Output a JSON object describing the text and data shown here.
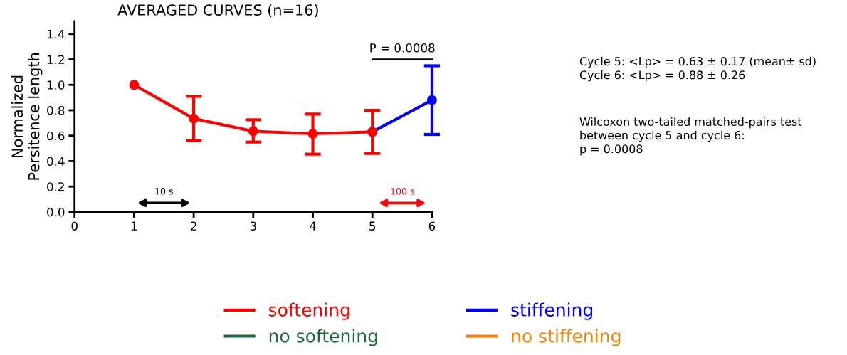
{
  "chart_data": {
    "type": "line",
    "title": "AVERAGED CURVES (n=16)",
    "ylabel": "Normalized\nPersitence length",
    "xlim": [
      0,
      6
    ],
    "xticks": [
      0,
      1,
      2,
      3,
      4,
      5,
      6
    ],
    "ylim": [
      0,
      1.5
    ],
    "yticks": [
      {
        "value": 0,
        "label": "0.0"
      },
      {
        "value": 0.2,
        "label": "0.2"
      },
      {
        "value": 0.4,
        "label": "0.4"
      },
      {
        "value": 0.6,
        "label": "0.6"
      },
      {
        "value": 0.8,
        "label": "0.8"
      },
      {
        "value": 1.0,
        "label": "1.0"
      },
      {
        "value": 1.2,
        "label": "1.2"
      },
      {
        "value": 1.4,
        "label": "1.4"
      }
    ],
    "series": [
      {
        "name": "softening",
        "color": "#ff0000",
        "x": [
          1,
          2,
          3,
          4,
          5
        ],
        "values": [
          1.0,
          0.735,
          0.635,
          0.615,
          0.63
        ],
        "errors": [
          null,
          [
            0.56,
            0.91
          ],
          [
            0.55,
            0.725
          ],
          [
            0.455,
            0.77
          ],
          [
            0.46,
            0.8
          ]
        ]
      },
      {
        "name": "stiffening",
        "color": "#0000ff",
        "x": [
          5,
          6
        ],
        "values": [
          0.63,
          0.88
        ],
        "errors": [
          null,
          [
            0.61,
            1.15
          ]
        ]
      },
      {
        "name": "no softening",
        "color": "#1a6b35"
      },
      {
        "name": "no stiffening",
        "color": "#ff8000"
      }
    ],
    "marker": "circle",
    "legend": "bottom",
    "grid": false,
    "annotations": [
      "P = 0.0008",
      "10 s",
      "100 s",
      "Cycle 5: <Lp> = 0.63 ± 0.17 (mean± sd)\nCycle 6: <Lp> = 0.88 ± 0.26",
      "Wilcoxon two-tailed matched-pairs test\nbetween cycle 5 and cycle 6:\np = 0.0008"
    ]
  }
}
